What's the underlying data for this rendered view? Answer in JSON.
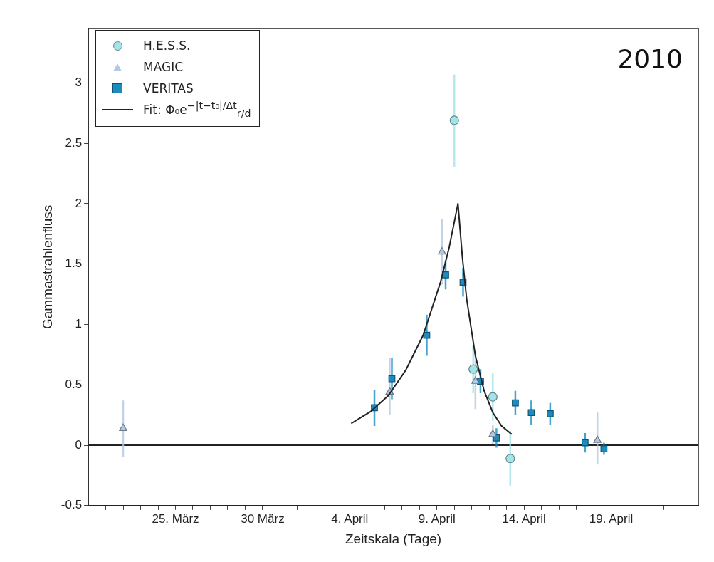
{
  "chart_data": {
    "type": "scatter",
    "xlabel": "Zeitskala (Tage)",
    "ylabel": "Gammastrahlenfluss",
    "annotations": [
      "2010"
    ],
    "xlim": [
      "2010-03-20",
      "2010-04-24"
    ],
    "xticks": [
      {
        "value": "2010-03-21",
        "label": null
      },
      {
        "value": "2010-03-22",
        "label": null
      },
      {
        "value": "2010-03-23",
        "label": null
      },
      {
        "value": "2010-03-24",
        "label": null
      },
      {
        "value": "2010-03-25",
        "label": "25. März"
      },
      {
        "value": "2010-03-26",
        "label": null
      },
      {
        "value": "2010-03-27",
        "label": null
      },
      {
        "value": "2010-03-28",
        "label": null
      },
      {
        "value": "2010-03-29",
        "label": null
      },
      {
        "value": "2010-03-30",
        "label": "30 März"
      },
      {
        "value": "2010-03-31",
        "label": null
      },
      {
        "value": "2010-04-01",
        "label": null
      },
      {
        "value": "2010-04-02",
        "label": null
      },
      {
        "value": "2010-04-03",
        "label": null
      },
      {
        "value": "2010-04-04",
        "label": "4. April"
      },
      {
        "value": "2010-04-05",
        "label": null
      },
      {
        "value": "2010-04-06",
        "label": null
      },
      {
        "value": "2010-04-07",
        "label": null
      },
      {
        "value": "2010-04-08",
        "label": null
      },
      {
        "value": "2010-04-09",
        "label": "9. April"
      },
      {
        "value": "2010-04-10",
        "label": null
      },
      {
        "value": "2010-04-11",
        "label": null
      },
      {
        "value": "2010-04-12",
        "label": null
      },
      {
        "value": "2010-04-13",
        "label": null
      },
      {
        "value": "2010-04-14",
        "label": "14. April"
      },
      {
        "value": "2010-04-15",
        "label": null
      },
      {
        "value": "2010-04-16",
        "label": null
      },
      {
        "value": "2010-04-17",
        "label": null
      },
      {
        "value": "2010-04-18",
        "label": null
      },
      {
        "value": "2010-04-19",
        "label": "19. April"
      },
      {
        "value": "2010-04-20",
        "label": null
      },
      {
        "value": "2010-04-21",
        "label": null
      },
      {
        "value": "2010-04-22",
        "label": null
      },
      {
        "value": "2010-04-23",
        "label": null
      }
    ],
    "ylim": [
      -0.5,
      3.45
    ],
    "yticks": [
      -0.5,
      0,
      0.5,
      1,
      1.5,
      2,
      2.5,
      3
    ],
    "grid": false,
    "legend": "top left",
    "ref_lines": [
      {
        "axis": "y",
        "value": 0,
        "color": "#222222"
      }
    ],
    "series": [
      {
        "name": "H.E.S.S.",
        "type": "scatter",
        "marker": "circle",
        "color": "#a3e3ea",
        "x": [
          "2010-04-10T00:00",
          "2010-04-11T02:00",
          "2010-04-12T05:00",
          "2010-04-13T05:00"
        ],
        "values": [
          2.69,
          0.63,
          0.4,
          -0.11
        ],
        "errors": [
          [
            2.3,
            3.07
          ],
          0.2,
          0.2,
          [
            -0.34,
            0.12
          ]
        ]
      },
      {
        "name": "MAGIC",
        "type": "scatter",
        "marker": "triangle",
        "color": "#b3c8e2",
        "x": [
          "2010-03-22T00:00",
          "2010-04-06T07:00",
          "2010-04-09T07:00",
          "2010-04-11T05:00",
          "2010-04-12T05:00",
          "2010-04-18T05:00"
        ],
        "values": [
          0.14,
          0.44,
          1.6,
          0.53,
          0.09,
          0.04
        ],
        "errors": [
          [
            -0.1,
            0.37
          ],
          [
            0.25,
            0.72
          ],
          0.27,
          [
            0.3,
            0.78
          ],
          0.08,
          [
            -0.16,
            0.27
          ]
        ]
      },
      {
        "name": "VERITAS",
        "type": "scatter",
        "marker": "square",
        "color": "#1a8cc0",
        "x": [
          "2010-04-05T10:00",
          "2010-04-06T10:00",
          "2010-04-08T10:00",
          "2010-04-09T12:00",
          "2010-04-10T12:00",
          "2010-04-11T12:00",
          "2010-04-12T10:00",
          "2010-04-13T12:00",
          "2010-04-14T10:00",
          "2010-04-15T12:00",
          "2010-04-17T12:00",
          "2010-04-18T14:00"
        ],
        "values": [
          0.31,
          0.55,
          0.91,
          1.41,
          1.35,
          0.53,
          0.06,
          0.35,
          0.27,
          0.26,
          0.02,
          -0.03
        ],
        "errors": [
          0.15,
          0.17,
          0.17,
          0.12,
          0.12,
          0.1,
          0.08,
          0.1,
          0.1,
          0.09,
          0.08,
          0.05
        ]
      },
      {
        "name": "Fit: Φ₀e$^{−|t−t₀|/Δt}$$_{r/d}$",
        "type": "line",
        "marker": "none",
        "line_style": "solid",
        "color": "#222222",
        "x": [
          "2010-04-04T02:00",
          "2010-04-05T05:00",
          "2010-04-06T05:00",
          "2010-04-07T05:00",
          "2010-04-08T05:00",
          "2010-04-09T05:00",
          "2010-04-09T17:00",
          "2010-04-10T05:00",
          "2010-04-10T11:00",
          "2010-04-10T17:00",
          "2010-04-11T05:00",
          "2010-04-11T17:00",
          "2010-04-12T05:00",
          "2010-04-12T17:00",
          "2010-04-13T07:00"
        ],
        "values": [
          0.18,
          0.28,
          0.41,
          0.62,
          0.91,
          1.35,
          1.64,
          2.0,
          1.56,
          1.21,
          0.74,
          0.45,
          0.27,
          0.16,
          0.09
        ]
      }
    ]
  }
}
